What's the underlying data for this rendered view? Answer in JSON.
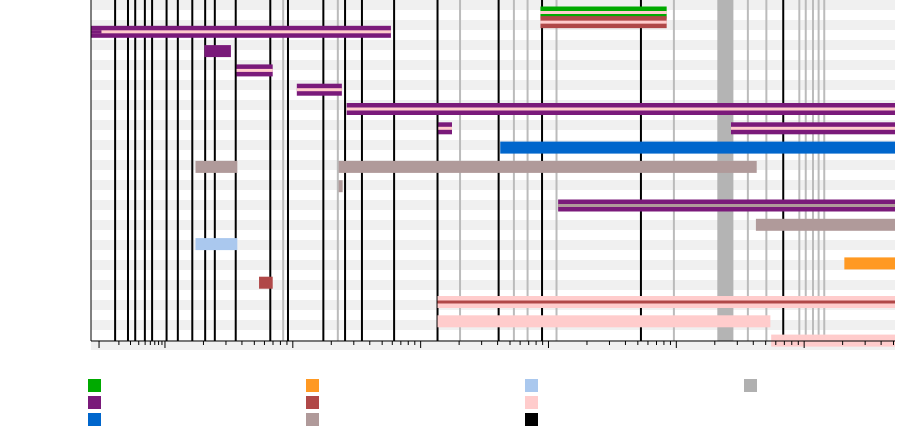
{
  "chart_data": {
    "type": "timeline",
    "title": "",
    "xlabel": "",
    "ylabel": "",
    "grid": true,
    "legend_position": "bottom",
    "x_unit": "column index",
    "xlim": [
      0,
      100
    ],
    "ylim": [
      0,
      17
    ],
    "rows": 17,
    "legend": [
      {
        "color": "#00aa00"
      },
      {
        "color": "#ff9922"
      },
      {
        "color": "#aac8ee"
      },
      {
        "color": "#b0b0b0"
      },
      {
        "color": "#7a1a7a"
      },
      {
        "color": "#b04848"
      },
      {
        "color": "#ffcccc"
      },
      {
        "color": "#0066cc"
      },
      {
        "color": "#b09a9a"
      },
      {
        "color": "#000000"
      }
    ],
    "vertical_lines": [
      {
        "x": 3.0,
        "color": "#000000"
      },
      {
        "x": 4.6,
        "color": "#000000"
      },
      {
        "x": 5.5,
        "color": "#000000"
      },
      {
        "x": 6.7,
        "color": "#000000"
      },
      {
        "x": 7.6,
        "color": "#000000"
      },
      {
        "x": 9.4,
        "color": "#000000"
      },
      {
        "x": 10.8,
        "color": "#000000"
      },
      {
        "x": 12.6,
        "color": "#000000"
      },
      {
        "x": 14.2,
        "color": "#000000"
      },
      {
        "x": 15.4,
        "color": "#000000"
      },
      {
        "x": 18.0,
        "color": "#000000"
      },
      {
        "x": 22.3,
        "color": "#000000"
      },
      {
        "x": 24.5,
        "color": "#000000"
      },
      {
        "x": 28.9,
        "color": "#000000"
      },
      {
        "x": 31.6,
        "color": "#000000"
      },
      {
        "x": 33.7,
        "color": "#000000"
      },
      {
        "x": 37.7,
        "color": "#000000"
      },
      {
        "x": 43.1,
        "color": "#000000"
      },
      {
        "x": 50.7,
        "color": "#000000"
      },
      {
        "x": 56.1,
        "color": "#000000"
      },
      {
        "x": 68.4,
        "color": "#000000"
      },
      {
        "x": 86.1,
        "color": "#000000"
      },
      {
        "x": 23.9,
        "color": "#bbbbbb"
      },
      {
        "x": 30.7,
        "color": "#bbbbbb"
      },
      {
        "x": 45.9,
        "color": "#bbbbbb"
      },
      {
        "x": 52.6,
        "color": "#bbbbbb"
      },
      {
        "x": 54.3,
        "color": "#bbbbbb"
      },
      {
        "x": 57.9,
        "color": "#bbbbbb"
      },
      {
        "x": 72.5,
        "color": "#bbbbbb"
      },
      {
        "x": 81.7,
        "color": "#bbbbbb"
      },
      {
        "x": 84.0,
        "color": "#bbbbbb"
      },
      {
        "x": 88.1,
        "color": "#bbbbbb"
      },
      {
        "x": 88.9,
        "color": "#bbbbbb"
      },
      {
        "x": 89.8,
        "color": "#bbbbbb"
      },
      {
        "x": 90.5,
        "color": "#bbbbbb"
      },
      {
        "x": 91.2,
        "color": "#bbbbbb"
      }
    ],
    "shaded_bands": [
      {
        "start": 77.9,
        "end": 79.9,
        "color": "#b4b4b4"
      }
    ],
    "bars": [
      {
        "row": 0,
        "start": 55.9,
        "end": 71.6,
        "color": "#00aa00",
        "stripe": "#ffcccc"
      },
      {
        "row": 0.5,
        "start": 55.9,
        "end": 71.6,
        "color": "#b04848",
        "stripe": "#ffcccc"
      },
      {
        "row": 1,
        "start": 0.0,
        "end": 37.3,
        "color": "#7a1a7a",
        "stripe": "#ffcccc"
      },
      {
        "row": 2,
        "start": 14.1,
        "end": 17.4,
        "color": "#7a1a7a"
      },
      {
        "row": 3,
        "start": 18.1,
        "end": 22.6,
        "color": "#7a1a7a",
        "stripe": "#ffcccc"
      },
      {
        "row": 4,
        "start": 25.6,
        "end": 31.2,
        "color": "#7a1a7a",
        "stripe": "#ffcccc"
      },
      {
        "row": 5,
        "start": 31.8,
        "end": 100,
        "color": "#7a1a7a",
        "stripe": "#ffcccc"
      },
      {
        "row": 6,
        "start": 43.2,
        "end": 44.9,
        "color": "#7a1a7a",
        "stripe": "#ffcccc"
      },
      {
        "row": 6,
        "start": 79.6,
        "end": 100,
        "color": "#7a1a7a",
        "stripe": "#ffcccc"
      },
      {
        "row": 7,
        "start": 50.9,
        "end": 100,
        "color": "#0066cc"
      },
      {
        "row": 8,
        "start": 13.0,
        "end": 18.2,
        "color": "#b09a9a"
      },
      {
        "row": 8,
        "start": 30.8,
        "end": 82.8,
        "color": "#b09a9a"
      },
      {
        "row": 9,
        "start": 30.8,
        "end": 31.3,
        "color": "#b09a9a"
      },
      {
        "row": 10,
        "start": 58.1,
        "end": 100,
        "color": "#7a1a7a",
        "stripe": "#b09a9a"
      },
      {
        "row": 11,
        "start": 82.7,
        "end": 100,
        "color": "#b09a9a"
      },
      {
        "row": 12,
        "start": 13.0,
        "end": 18.2,
        "color": "#aac8ee"
      },
      {
        "row": 13,
        "start": 93.7,
        "end": 100,
        "color": "#ff9922"
      },
      {
        "row": 14,
        "start": 20.9,
        "end": 22.6,
        "color": "#b04848"
      },
      {
        "row": 15,
        "start": 43.1,
        "end": 100,
        "color": "#ffcccc",
        "stripe": "#b04848"
      },
      {
        "row": 16,
        "start": 43.1,
        "end": 84.5,
        "color": "#ffcccc"
      },
      {
        "row": 17,
        "start": 84.6,
        "end": 100,
        "color": "#ffcccc"
      }
    ]
  }
}
